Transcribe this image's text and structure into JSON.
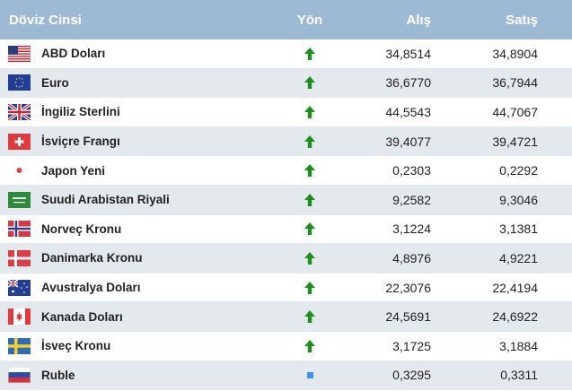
{
  "header": {
    "name": "Döviz Cinsi",
    "direction": "Yön",
    "buy": "Alış",
    "sell": "Satış"
  },
  "colors": {
    "header_bg": "#9dbad4",
    "row_alt_bg": "#e4e9ee",
    "up_arrow": "#1e8f1e",
    "neutral": "#3f8ef0"
  },
  "rows": [
    {
      "flag": "us-flag-icon",
      "name": "ABD Doları",
      "direction": "up-arrow-icon",
      "buy": "34,8514",
      "sell": "34,8904"
    },
    {
      "flag": "eu-flag-icon",
      "name": "Euro",
      "direction": "up-arrow-icon",
      "buy": "36,6770",
      "sell": "36,7944"
    },
    {
      "flag": "uk-flag-icon",
      "name": "İngiliz Sterlini",
      "direction": "up-arrow-icon",
      "buy": "44,5543",
      "sell": "44,7067"
    },
    {
      "flag": "ch-flag-icon",
      "name": "İsviçre Frangı",
      "direction": "up-arrow-icon",
      "buy": "39,4077",
      "sell": "39,4721"
    },
    {
      "flag": "jp-flag-icon",
      "name": "Japon Yeni",
      "direction": "up-arrow-icon",
      "buy": "0,2303",
      "sell": "0,2292"
    },
    {
      "flag": "sa-flag-icon",
      "name": "Suudi Arabistan Riyali",
      "direction": "up-arrow-icon",
      "buy": "9,2582",
      "sell": "9,3046"
    },
    {
      "flag": "no-flag-icon",
      "name": "Norveç Kronu",
      "direction": "up-arrow-icon",
      "buy": "3,1224",
      "sell": "3,1381"
    },
    {
      "flag": "dk-flag-icon",
      "name": "Danimarka Kronu",
      "direction": "up-arrow-icon",
      "buy": "4,8976",
      "sell": "4,9221"
    },
    {
      "flag": "au-flag-icon",
      "name": "Avustralya Doları",
      "direction": "up-arrow-icon",
      "buy": "22,3076",
      "sell": "22,4194"
    },
    {
      "flag": "ca-flag-icon",
      "name": "Kanada Doları",
      "direction": "up-arrow-icon",
      "buy": "24,5691",
      "sell": "24,6922"
    },
    {
      "flag": "se-flag-icon",
      "name": "İsveç Kronu",
      "direction": "up-arrow-icon",
      "buy": "3,1725",
      "sell": "3,1884"
    },
    {
      "flag": "ru-flag-icon",
      "name": "Ruble",
      "direction": "neutral-square-icon",
      "buy": "0,3295",
      "sell": "0,3311"
    }
  ]
}
